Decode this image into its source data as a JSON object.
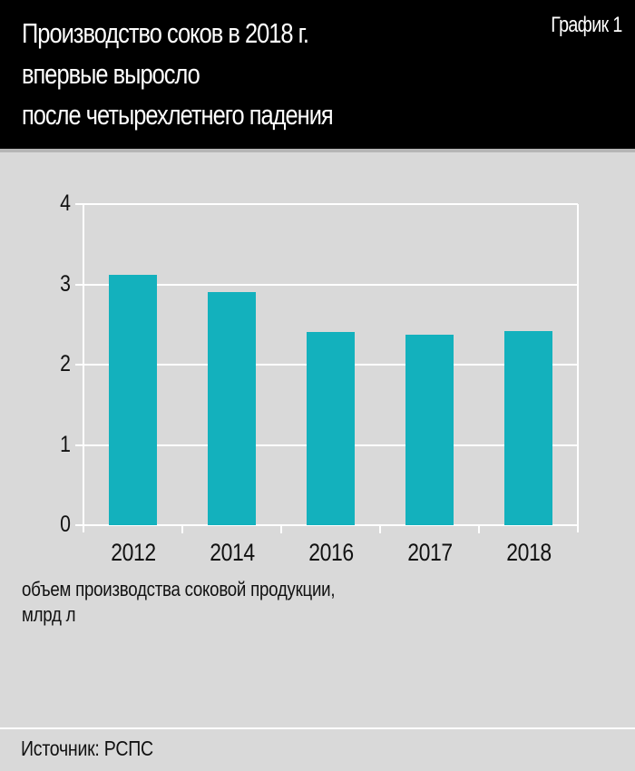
{
  "header": {
    "title_lines": [
      "Производство соков в 2018 г.",
      "впервые выросло",
      "после четырехлетнего падения"
    ],
    "chart_number": "График 1"
  },
  "axis_caption_lines": [
    "объем производства соковой продукции,",
    "млрд л"
  ],
  "source": "Источник: РСПС",
  "colors": {
    "bar": "#13b1bd",
    "background": "#d9d9d9",
    "header": "#000000",
    "grid": "#ffffff"
  },
  "chart_data": {
    "type": "bar",
    "title": "Производство соков в 2018 г. впервые выросло после четырехлетнего падения",
    "categories": [
      "2012",
      "2014",
      "2016",
      "2017",
      "2018"
    ],
    "values": [
      3.12,
      2.9,
      2.41,
      2.37,
      2.42
    ],
    "xlabel": "",
    "ylabel": "объем производства соковой продукции, млрд л",
    "ylim": [
      0,
      4
    ],
    "yticks": [
      "0",
      "1",
      "2",
      "3",
      "4"
    ],
    "grid": true,
    "legend": null
  }
}
